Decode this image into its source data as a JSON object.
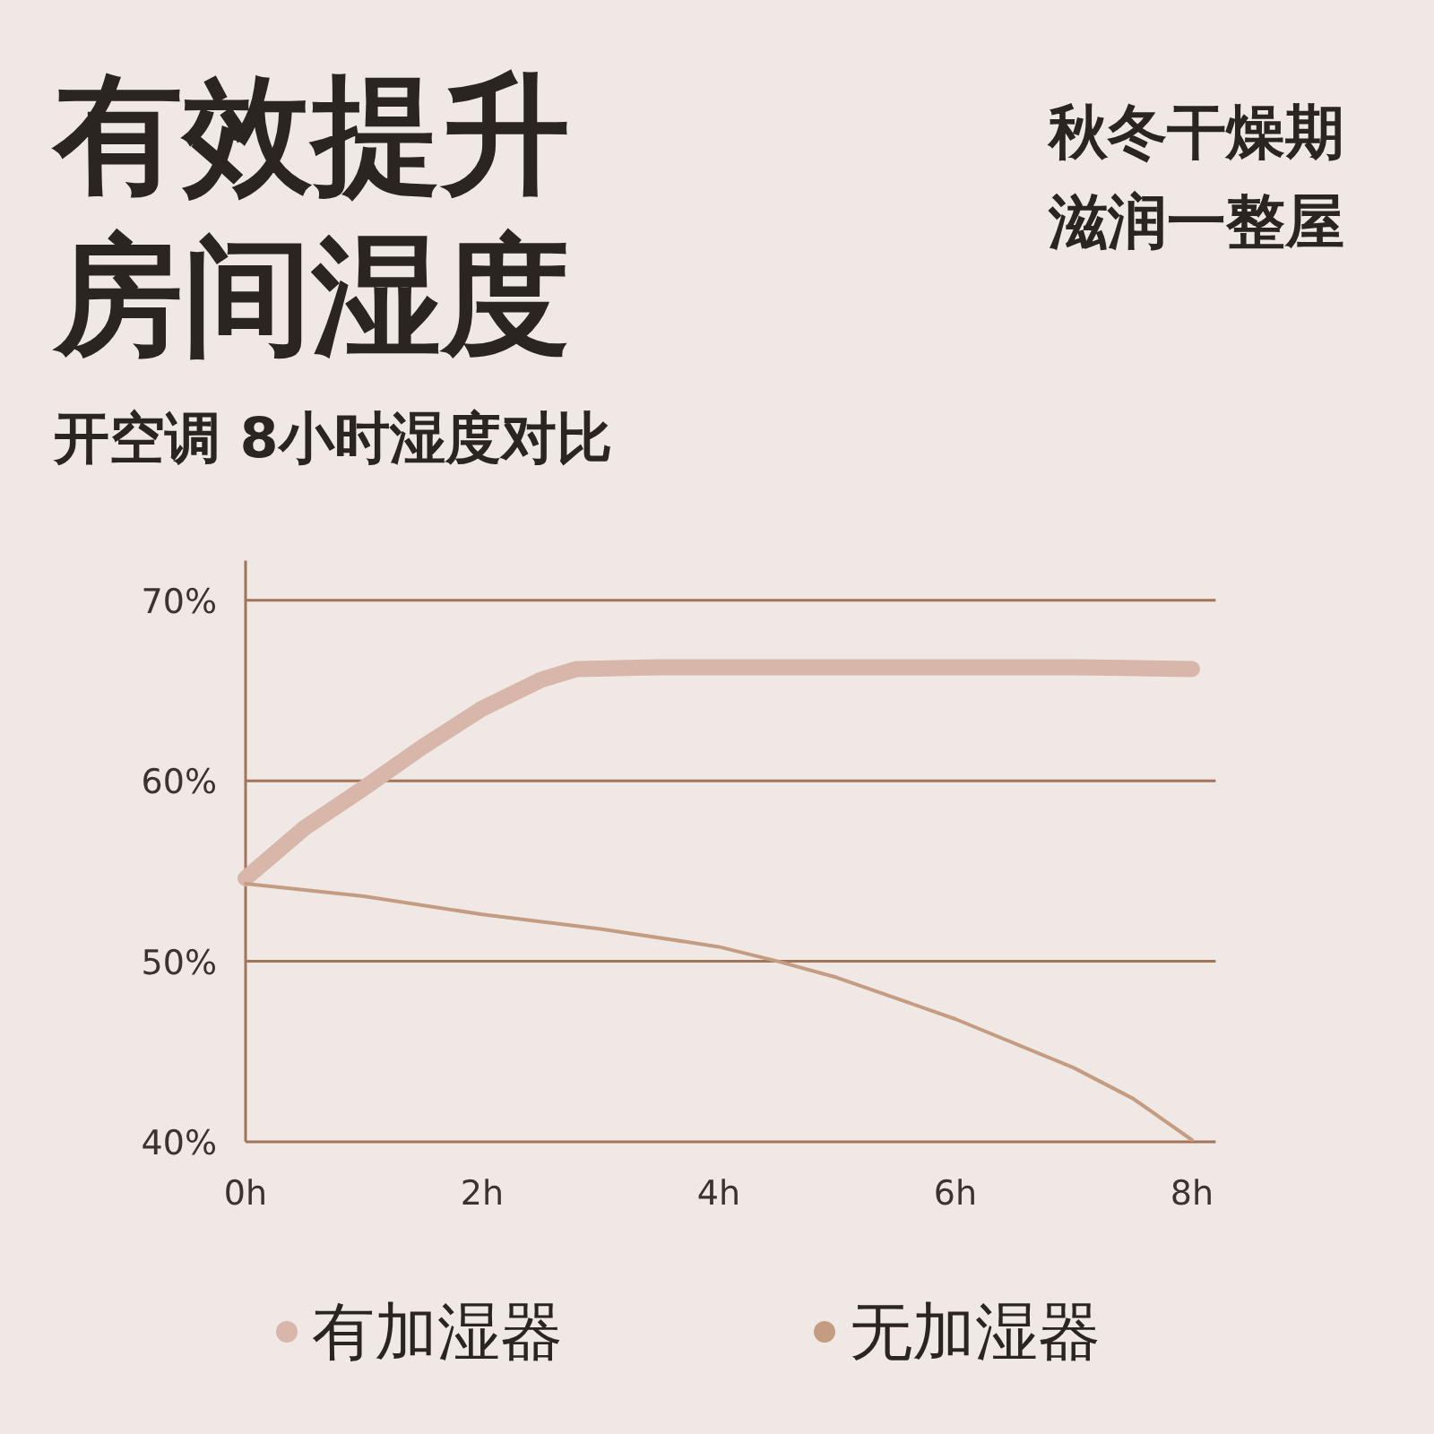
{
  "chart_data": {
    "type": "line",
    "title": "有效提升房间湿度",
    "subtitle": "开空调 8小时湿度对比",
    "annotations": [
      "秋冬干燥期",
      "滋润一整屋"
    ],
    "x": [
      0,
      0.5,
      1,
      1.5,
      2,
      2.5,
      2.8,
      3.5,
      4,
      5,
      6,
      7,
      8
    ],
    "series": [
      {
        "name": "有加湿器",
        "color": "#d8b6aa",
        "values": [
          54.6,
          57.4,
          59.6,
          61.9,
          64.0,
          65.6,
          66.2,
          66.3,
          66.3,
          66.3,
          66.3,
          66.3,
          66.2
        ]
      },
      {
        "name": "无加湿器",
        "color": "#c49c82",
        "x": [
          0,
          1,
          2,
          3,
          4,
          4.5,
          5,
          6,
          7,
          7.5,
          8
        ],
        "values": [
          54.3,
          53.6,
          52.6,
          51.8,
          50.8,
          50.0,
          49.1,
          46.8,
          44.1,
          42.4,
          40.1
        ]
      }
    ],
    "xlim": [
      0,
      8.2
    ],
    "ylim": [
      40,
      72.2
    ],
    "xticks": [
      {
        "value": 0,
        "label": "0h"
      },
      {
        "value": 2,
        "label": "2h"
      },
      {
        "value": 4,
        "label": "4h"
      },
      {
        "value": 6,
        "label": "6h"
      },
      {
        "value": 8,
        "label": "8h"
      }
    ],
    "yticks": [
      {
        "value": 40,
        "label": "40%"
      },
      {
        "value": 50,
        "label": "50%"
      },
      {
        "value": 60,
        "label": "60%"
      },
      {
        "value": 70,
        "label": "70%"
      }
    ],
    "grid": "y",
    "legend": "bottom",
    "marker": "none",
    "line_style": "solid"
  }
}
